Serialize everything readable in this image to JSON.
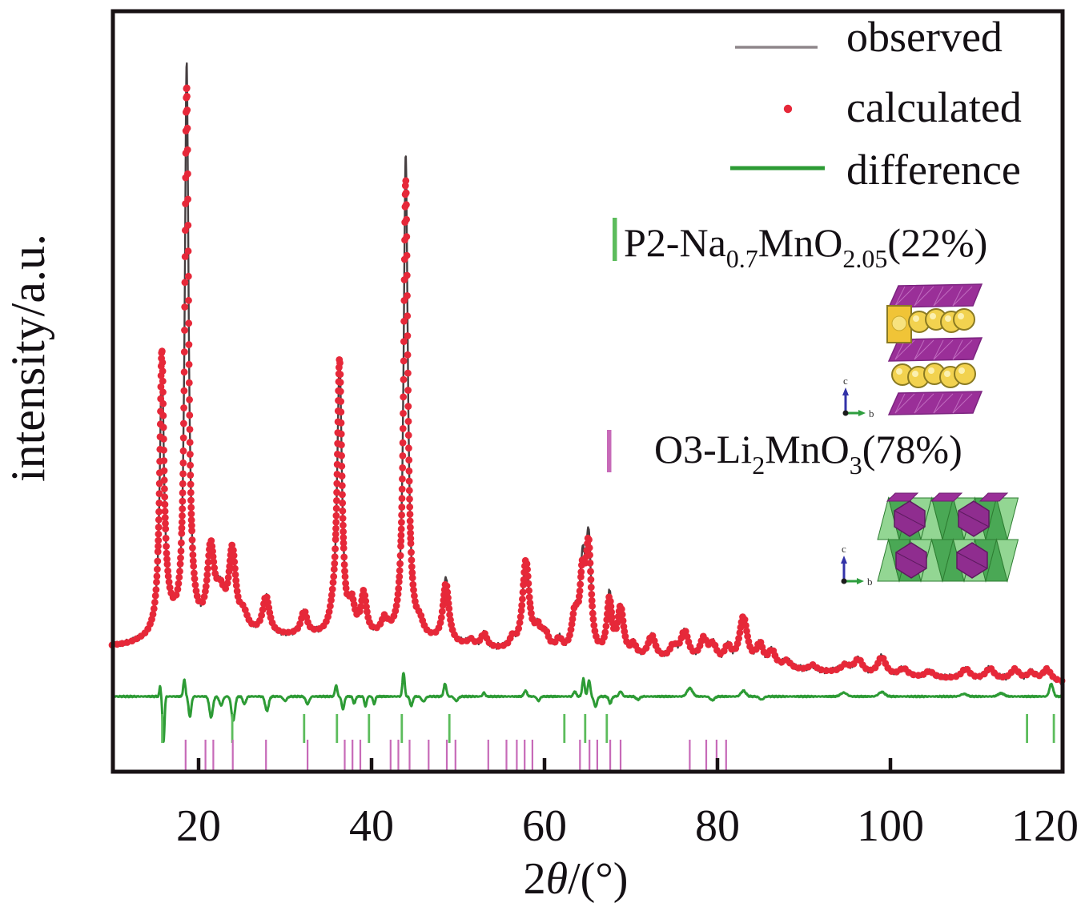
{
  "figure": {
    "description": "XRD Rietveld refinement pattern with two phases"
  },
  "axes": {
    "y_label": "intensity/a.u.",
    "x_label_parts": [
      {
        "t": "2"
      },
      {
        "t": "θ",
        "italic": true
      },
      {
        "t": "/(°)"
      }
    ],
    "x_ticks": [
      20,
      40,
      60,
      80,
      100,
      120
    ]
  },
  "legend": {
    "items": [
      {
        "label": "observed",
        "marker": "line",
        "color": "#8e868a"
      },
      {
        "label": "calculated",
        "marker": "dot",
        "color": "#e62839"
      },
      {
        "label": "difference",
        "marker": "line",
        "color": "#2d9b35"
      }
    ]
  },
  "phases": [
    {
      "name": "P2-Na0.7MnO2.05",
      "fraction": "22%",
      "tick_color": "#5cbc5c",
      "label_parts": [
        {
          "t": "P2-Na"
        },
        {
          "t": "0.7",
          "sub": true
        },
        {
          "t": "MnO"
        },
        {
          "t": "2.05",
          "sub": true
        },
        {
          "t": "(22%)"
        }
      ]
    },
    {
      "name": "O3-Li2MnO3",
      "fraction": "78%",
      "tick_color": "#c76ab8",
      "label_parts": [
        {
          "t": "O3-Li"
        },
        {
          "t": "2",
          "sub": true
        },
        {
          "t": "MnO"
        },
        {
          "t": "3",
          "sub": true
        },
        {
          "t": "(78%)"
        }
      ]
    }
  ],
  "insets": [
    {
      "label": "P2 layered structure",
      "axis_labels": [
        "c",
        "b"
      ],
      "colors": {
        "slab": "#9a2f98",
        "slab_edge": "#7c2480",
        "atom": "#f2d24f",
        "atom_edge": "#8a7a22",
        "prism": "#f0c437"
      }
    },
    {
      "label": "O3 Li2MnO3 structure",
      "axis_labels": [
        "c",
        "b"
      ],
      "colors": {
        "oct_light": "#93d693",
        "oct_dark": "#4aa855",
        "oct_edge": "#2e7d32",
        "purple": "#8f2d8f",
        "purple_edge": "#5e1b60"
      }
    }
  ],
  "chart_data": {
    "type": "line",
    "title": "",
    "xlabel": "2θ/(°)",
    "ylabel": "intensity/a.u.",
    "xlim": [
      10,
      120
    ],
    "x_ticks": [
      20,
      40,
      60,
      80,
      100,
      120
    ],
    "grid": false,
    "legend_position": "top-right",
    "colors": {
      "observed": "#453e40",
      "observed_legend": "#8e868a",
      "calculated": "#e62839",
      "difference": "#2d9b35",
      "p2_ticks": "#5cbc5c",
      "o3_ticks": "#c76ab8",
      "axis": "#181214"
    },
    "series": [
      {
        "name": "observed",
        "style": "line"
      },
      {
        "name": "calculated",
        "style": "scatter"
      },
      {
        "name": "difference",
        "style": "line"
      }
    ],
    "background": [
      [
        10,
        8.0
      ],
      [
        12,
        8.3
      ],
      [
        14,
        9.0
      ],
      [
        16,
        10.4
      ],
      [
        18,
        10.4
      ],
      [
        20,
        10.4
      ],
      [
        23,
        10.6
      ],
      [
        26,
        10.0
      ],
      [
        30,
        9.7
      ],
      [
        34,
        9.8
      ],
      [
        38,
        9.7
      ],
      [
        42,
        9.6
      ],
      [
        45,
        9.2
      ],
      [
        48,
        8.7
      ],
      [
        52,
        7.7
      ],
      [
        56,
        7.4
      ],
      [
        60,
        7.1
      ],
      [
        64,
        6.6
      ],
      [
        68,
        6.3
      ],
      [
        72,
        6.0
      ],
      [
        76,
        5.6
      ],
      [
        80,
        5.2
      ],
      [
        84,
        4.8
      ],
      [
        88,
        4.3
      ],
      [
        92,
        3.9
      ],
      [
        96,
        3.6
      ],
      [
        100,
        3.3
      ],
      [
        104,
        3.0
      ],
      [
        108,
        2.8
      ],
      [
        112,
        2.7
      ],
      [
        116,
        2.5
      ],
      [
        120,
        2.3
      ]
    ],
    "peaks": [
      [
        15.75,
        39,
        0.3
      ],
      [
        16.1,
        4,
        0.9
      ],
      [
        18.62,
        85,
        0.28
      ],
      [
        18.8,
        5,
        0.8
      ],
      [
        21.4,
        12,
        0.5
      ],
      [
        22.5,
        5,
        0.7
      ],
      [
        23.9,
        12,
        0.5
      ],
      [
        25.2,
        2.5,
        0.6
      ],
      [
        27.8,
        5.8,
        0.5
      ],
      [
        32.2,
        3.6,
        0.45
      ],
      [
        35.5,
        2.0,
        0.5
      ],
      [
        36.3,
        43,
        0.35
      ],
      [
        37.7,
        4.5,
        0.45
      ],
      [
        39.1,
        6.3,
        0.4
      ],
      [
        41.5,
        2.3,
        0.45
      ],
      [
        43.95,
        72,
        0.3
      ],
      [
        44.1,
        5,
        0.8
      ],
      [
        45.6,
        1.8,
        0.5
      ],
      [
        48.6,
        10,
        0.45
      ],
      [
        51.5,
        1.0,
        0.5
      ],
      [
        53.0,
        2.2,
        0.45
      ],
      [
        56.3,
        1.5,
        0.4
      ],
      [
        57.85,
        14,
        0.5
      ],
      [
        59.2,
        3.0,
        0.5
      ],
      [
        60.1,
        2.4,
        0.5
      ],
      [
        61.7,
        1.8,
        0.45
      ],
      [
        63.5,
        5.5,
        0.45
      ],
      [
        64.4,
        13,
        0.42
      ],
      [
        65.1,
        17,
        0.38
      ],
      [
        67.5,
        9.5,
        0.38
      ],
      [
        68.8,
        7.5,
        0.45
      ],
      [
        70.3,
        1.8,
        0.4
      ],
      [
        72.4,
        3.5,
        0.55
      ],
      [
        74.9,
        2.0,
        0.5
      ],
      [
        76.2,
        4.5,
        0.6
      ],
      [
        78.4,
        3.5,
        0.55
      ],
      [
        79.5,
        2.5,
        0.5
      ],
      [
        81.2,
        2.5,
        0.5
      ],
      [
        83.0,
        7.5,
        0.6
      ],
      [
        84.9,
        3.3,
        0.5
      ],
      [
        86.3,
        2.5,
        0.5
      ],
      [
        88.0,
        1.2,
        0.6
      ],
      [
        91.0,
        0.9,
        0.6
      ],
      [
        94.8,
        1.2,
        0.7
      ],
      [
        96.3,
        2.2,
        0.6
      ],
      [
        99.0,
        2.8,
        0.6
      ],
      [
        101.5,
        1.2,
        0.6
      ],
      [
        104.5,
        1.0,
        0.6
      ],
      [
        108.7,
        1.6,
        0.6
      ],
      [
        111.5,
        1.7,
        0.6
      ],
      [
        114.4,
        1.7,
        0.6
      ],
      [
        116.3,
        1.2,
        0.6
      ],
      [
        118.1,
        1.9,
        0.6
      ]
    ],
    "calc_scale": {
      "15.75": 1.05,
      "18.62": 0.955,
      "43.95": 0.94,
      "48.6": 0.92,
      "64.4": 0.88,
      "65.1": 0.93,
      "67.5": 0.9
    },
    "difference_wiggles": [
      [
        15.55,
        1.6,
        0.12
      ],
      [
        15.95,
        -7.2,
        0.16
      ],
      [
        18.35,
        2.6,
        0.18
      ],
      [
        19.0,
        -3.2,
        0.22
      ],
      [
        21.45,
        -3.3,
        0.28
      ],
      [
        22.6,
        -1.4,
        0.28
      ],
      [
        24.0,
        -3.9,
        0.28
      ],
      [
        25.3,
        -1.2,
        0.25
      ],
      [
        27.9,
        -2.3,
        0.28
      ],
      [
        30.0,
        -0.7,
        0.3
      ],
      [
        32.6,
        -1.2,
        0.28
      ],
      [
        35.9,
        1.8,
        0.18
      ],
      [
        36.7,
        -2.0,
        0.22
      ],
      [
        38.0,
        -1.1,
        0.2
      ],
      [
        39.3,
        -1.6,
        0.18
      ],
      [
        40.3,
        -1.2,
        0.18
      ],
      [
        43.7,
        3.8,
        0.18
      ],
      [
        44.6,
        -1.5,
        0.22
      ],
      [
        46.0,
        -0.8,
        0.3
      ],
      [
        48.5,
        2.0,
        0.22
      ],
      [
        49.8,
        -0.7,
        0.3
      ],
      [
        53.0,
        0.6,
        0.2
      ],
      [
        57.8,
        0.9,
        0.25
      ],
      [
        59.3,
        -0.7,
        0.25
      ],
      [
        63.5,
        0.8,
        0.22
      ],
      [
        64.5,
        2.8,
        0.2
      ],
      [
        65.15,
        2.6,
        0.2
      ],
      [
        65.9,
        -1.6,
        0.25
      ],
      [
        67.6,
        -1.1,
        0.22
      ],
      [
        68.8,
        0.8,
        0.25
      ],
      [
        70.8,
        -0.5,
        0.3
      ],
      [
        76.8,
        1.3,
        0.45
      ],
      [
        79.4,
        -0.6,
        0.35
      ],
      [
        83.0,
        0.9,
        0.4
      ],
      [
        85.1,
        -0.5,
        0.35
      ],
      [
        94.6,
        0.6,
        0.5
      ],
      [
        99.0,
        0.7,
        0.5
      ],
      [
        108.5,
        0.4,
        0.5
      ],
      [
        112.8,
        0.5,
        0.5
      ],
      [
        118.6,
        2.0,
        0.3
      ]
    ],
    "bragg_markers": [
      {
        "phase": "P2-Na0.7MnO2.05",
        "color": "#5cbc5c",
        "positions": [
          15.8,
          23.9,
          32.2,
          36.0,
          39.7,
          43.5,
          49.0,
          62.3,
          64.7,
          67.2,
          115.8,
          118.9
        ]
      },
      {
        "phase": "O3-Li2MnO3",
        "color": "#c76ab8",
        "positions": [
          18.5,
          20.8,
          21.7,
          23.95,
          27.8,
          32.6,
          36.9,
          37.8,
          38.7,
          42.2,
          43.1,
          44.4,
          46.6,
          48.7,
          49.7,
          53.5,
          55.6,
          56.8,
          57.7,
          58.6,
          64.1,
          65.2,
          66.1,
          67.6,
          68.8,
          76.8,
          78.7,
          79.9,
          81.0
        ]
      }
    ]
  }
}
